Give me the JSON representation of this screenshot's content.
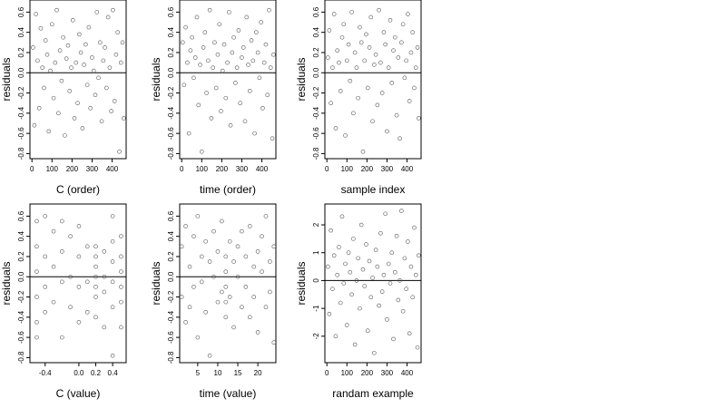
{
  "chart_data": [
    {
      "type": "scatter",
      "xlabel": "C (order)",
      "ylabel": "residuals",
      "xlim": [
        -10,
        470
      ],
      "ylim": [
        -0.85,
        0.72
      ],
      "xticks": [
        0,
        100,
        200,
        300,
        400
      ],
      "yticks": [
        -0.8,
        -0.6,
        -0.4,
        -0.2,
        0.0,
        0.2,
        0.4,
        0.6
      ],
      "xtick_labels": [
        "0",
        "100",
        "200",
        "300",
        "400"
      ],
      "ytick_labels": [
        "-0.8",
        "-0.6",
        "-0.4",
        "-0.2",
        "0.0",
        "0.2",
        "0.4",
        "0.6"
      ],
      "reference_line_y": 0,
      "x": [
        5,
        12,
        20,
        28,
        36,
        44,
        52,
        60,
        68,
        76,
        84,
        92,
        100,
        108,
        116,
        124,
        132,
        140,
        148,
        156,
        164,
        172,
        180,
        188,
        196,
        204,
        212,
        220,
        228,
        236,
        244,
        252,
        260,
        268,
        276,
        284,
        292,
        300,
        308,
        316,
        324,
        332,
        340,
        348,
        356,
        364,
        372,
        380,
        388,
        396,
        404,
        412,
        420,
        428,
        436,
        444,
        452,
        458
      ],
      "y": [
        0.25,
        -0.52,
        0.58,
        0.12,
        -0.35,
        0.44,
        0.05,
        -0.15,
        0.32,
        0.18,
        -0.58,
        0.02,
        0.48,
        -0.25,
        0.1,
        0.62,
        -0.4,
        0.22,
        -0.08,
        0.35,
        -0.62,
        0.14,
        0.27,
        -0.18,
        0.05,
        0.52,
        -0.45,
        0.1,
        -0.3,
        0.38,
        0.2,
        -0.55,
        0.08,
        0.28,
        -0.12,
        0.45,
        -0.35,
        0.15,
        0.02,
        -0.22,
        0.6,
        -0.05,
        0.3,
        -0.48,
        0.12,
        0.25,
        -0.15,
        0.55,
        0.05,
        -0.38,
        0.62,
        -0.28,
        0.18,
        0.4,
        -0.78,
        0.1,
        0.3,
        -0.45
      ]
    },
    {
      "type": "scatter",
      "xlabel": "time (order)",
      "ylabel": "residuals",
      "xlim": [
        -10,
        470
      ],
      "ylim": [
        -0.85,
        0.72
      ],
      "xticks": [
        0,
        100,
        200,
        300,
        400
      ],
      "yticks": [
        -0.8,
        -0.6,
        -0.4,
        -0.2,
        0.0,
        0.2,
        0.4,
        0.6
      ],
      "xtick_labels": [
        "0",
        "100",
        "200",
        "300",
        "400"
      ],
      "ytick_labels": [
        "-0.8",
        "-0.6",
        "-0.4",
        "-0.2",
        "0.0",
        "0.2",
        "0.4",
        "0.6"
      ],
      "reference_line_y": 0,
      "x": [
        5,
        12,
        20,
        28,
        36,
        44,
        52,
        60,
        68,
        76,
        84,
        92,
        100,
        108,
        116,
        124,
        132,
        140,
        148,
        156,
        164,
        172,
        180,
        188,
        196,
        204,
        212,
        220,
        228,
        236,
        244,
        252,
        260,
        268,
        276,
        284,
        292,
        300,
        308,
        316,
        324,
        332,
        340,
        348,
        356,
        364,
        372,
        380,
        388,
        396,
        404,
        412,
        420,
        428,
        436,
        444,
        452,
        458
      ],
      "y": [
        0.3,
        -0.12,
        0.45,
        0.1,
        -0.6,
        0.22,
        0.35,
        -0.05,
        0.15,
        0.55,
        -0.32,
        0.08,
        -0.78,
        0.25,
        0.4,
        -0.2,
        0.12,
        0.62,
        -0.45,
        0.05,
        0.3,
        -0.15,
        0.18,
        0.48,
        -0.38,
        0.02,
        0.28,
        -0.25,
        0.1,
        0.6,
        -0.52,
        0.2,
        0.35,
        -0.1,
        0.05,
        0.42,
        -0.3,
        0.15,
        0.25,
        -0.48,
        0.55,
        0.08,
        -0.18,
        0.32,
        0.12,
        -0.6,
        0.4,
        0.2,
        -0.05,
        0.5,
        -0.35,
        0.1,
        0.28,
        -0.22,
        0.62,
        0.05,
        -0.65,
        0.18
      ]
    },
    {
      "type": "scatter",
      "xlabel": "sample index",
      "ylabel": "residuals",
      "xlim": [
        -10,
        470
      ],
      "ylim": [
        -0.85,
        0.72
      ],
      "xticks": [
        0,
        100,
        200,
        300,
        400
      ],
      "yticks": [
        -0.8,
        -0.6,
        -0.4,
        -0.2,
        0.0,
        0.2,
        0.4,
        0.6
      ],
      "xtick_labels": [
        "0",
        "100",
        "200",
        "300",
        "400"
      ],
      "ytick_labels": [
        "-0.8",
        "-0.6",
        "-0.4",
        "-0.2",
        "0.0",
        "0.2",
        "0.4",
        "0.6"
      ],
      "reference_line_y": 0,
      "x": [
        5,
        12,
        20,
        28,
        36,
        44,
        52,
        60,
        68,
        76,
        84,
        92,
        100,
        108,
        116,
        124,
        132,
        140,
        148,
        156,
        164,
        172,
        180,
        188,
        196,
        204,
        212,
        220,
        228,
        236,
        244,
        252,
        260,
        268,
        276,
        284,
        292,
        300,
        308,
        316,
        324,
        332,
        340,
        348,
        356,
        364,
        372,
        380,
        388,
        396,
        404,
        412,
        420,
        428,
        436,
        444,
        452,
        458
      ],
      "y": [
        0.15,
        0.42,
        -0.3,
        0.05,
        0.58,
        -0.55,
        0.22,
        0.1,
        -0.18,
        0.35,
        0.48,
        -0.62,
        0.12,
        0.28,
        -0.08,
        0.6,
        -0.4,
        0.2,
        0.05,
        -0.25,
        0.45,
        0.3,
        -0.78,
        0.12,
        0.38,
        -0.15,
        0.25,
        0.55,
        -0.48,
        0.08,
        0.18,
        -0.32,
        0.62,
        0.1,
        -0.2,
        0.4,
        0.28,
        -0.58,
        0.05,
        0.52,
        -0.1,
        0.22,
        0.35,
        -0.42,
        0.15,
        -0.65,
        0.3,
        0.48,
        -0.05,
        0.12,
        0.58,
        -0.28,
        0.2,
        0.4,
        -0.15,
        0.05,
        0.25,
        -0.45
      ]
    },
    {
      "type": "scatter",
      "xlabel": "C (value)",
      "ylabel": "residuals",
      "xlim": [
        -0.58,
        0.56
      ],
      "ylim": [
        -0.85,
        0.72
      ],
      "xticks": [
        -0.4,
        0.0,
        0.2,
        0.4
      ],
      "yticks": [
        -0.8,
        -0.6,
        -0.4,
        -0.2,
        0.0,
        0.2,
        0.4,
        0.6
      ],
      "xtick_labels": [
        "-0.4",
        "0.0",
        "0.2",
        "0.4"
      ],
      "ytick_labels": [
        "-0.8",
        "-0.6",
        "-0.4",
        "-0.2",
        "0.0",
        "0.2",
        "0.4",
        "0.6"
      ],
      "reference_line_y": 0,
      "x": [
        -0.5,
        -0.5,
        -0.5,
        -0.5,
        -0.5,
        -0.5,
        -0.4,
        -0.4,
        -0.4,
        -0.4,
        -0.3,
        -0.3,
        -0.3,
        -0.2,
        -0.2,
        -0.2,
        -0.2,
        -0.1,
        -0.1,
        -0.1,
        0.0,
        0.0,
        0.0,
        0.0,
        0.1,
        0.1,
        0.1,
        0.2,
        0.2,
        0.2,
        0.2,
        0.2,
        0.2,
        0.2,
        0.3,
        0.3,
        0.3,
        0.3,
        0.4,
        0.4,
        0.4,
        0.4,
        0.4,
        0.4,
        0.5,
        0.5,
        0.5,
        0.5,
        0.5,
        0.5
      ],
      "y": [
        0.55,
        0.3,
        0.05,
        -0.2,
        -0.45,
        -0.6,
        0.6,
        0.2,
        -0.1,
        -0.35,
        0.45,
        0.1,
        -0.25,
        0.55,
        0.25,
        -0.05,
        -0.6,
        0.4,
        0.0,
        -0.3,
        0.5,
        0.2,
        -0.1,
        -0.45,
        0.3,
        -0.05,
        -0.35,
        0.3,
        0.2,
        0.1,
        0.0,
        -0.1,
        -0.2,
        -0.4,
        0.25,
        0.0,
        -0.15,
        -0.5,
        0.6,
        0.35,
        0.15,
        -0.05,
        -0.3,
        -0.78,
        0.4,
        0.2,
        0.05,
        -0.1,
        -0.25,
        -0.5
      ]
    },
    {
      "type": "scatter",
      "xlabel": "time (value)",
      "ylabel": "residuals",
      "xlim": [
        0.5,
        24.5
      ],
      "ylim": [
        -0.85,
        0.72
      ],
      "xticks": [
        5,
        10,
        15,
        20
      ],
      "yticks": [
        -0.8,
        -0.6,
        -0.4,
        -0.2,
        0.0,
        0.2,
        0.4,
        0.6
      ],
      "xtick_labels": [
        "5",
        "10",
        "15",
        "20"
      ],
      "ytick_labels": [
        "-0.8",
        "-0.6",
        "-0.4",
        "-0.2",
        "0.0",
        "0.2",
        "0.4",
        "0.6"
      ],
      "reference_line_y": 0,
      "x": [
        1,
        1,
        2,
        2,
        3,
        3,
        4,
        4,
        5,
        5,
        6,
        6,
        7,
        7,
        8,
        8,
        9,
        9,
        10,
        10,
        11,
        11,
        12,
        12,
        12,
        12,
        12,
        13,
        13,
        14,
        14,
        15,
        15,
        16,
        16,
        17,
        17,
        18,
        18,
        19,
        19,
        20,
        20,
        21,
        21,
        22,
        22,
        23,
        23,
        24,
        24
      ],
      "y": [
        0.3,
        -0.2,
        0.5,
        -0.45,
        0.1,
        -0.3,
        0.4,
        -0.1,
        0.6,
        -0.6,
        0.2,
        -0.05,
        0.35,
        -0.35,
        0.15,
        -0.78,
        0.45,
        0.0,
        0.25,
        -0.25,
        0.55,
        -0.15,
        0.2,
        0.05,
        -0.1,
        -0.25,
        -0.4,
        0.35,
        -0.2,
        0.15,
        -0.5,
        0.3,
        0.0,
        0.45,
        -0.3,
        0.2,
        -0.1,
        0.5,
        -0.4,
        0.1,
        -0.2,
        0.25,
        -0.55,
        0.4,
        0.05,
        0.6,
        -0.3,
        0.15,
        -0.15,
        0.3,
        -0.65
      ]
    },
    {
      "type": "scatter",
      "xlabel": "randam example",
      "ylabel": "residuals",
      "xlim": [
        -10,
        470
      ],
      "ylim": [
        -2.95,
        2.75
      ],
      "xticks": [
        0,
        100,
        200,
        300,
        400
      ],
      "yticks": [
        -2,
        -1,
        0,
        1,
        2
      ],
      "xtick_labels": [
        "0",
        "100",
        "200",
        "300",
        "400"
      ],
      "ytick_labels": [
        "-2",
        "-1",
        "0",
        "1",
        "2"
      ],
      "reference_line_y": 0,
      "x": [
        5,
        12,
        20,
        28,
        36,
        44,
        52,
        60,
        68,
        76,
        84,
        92,
        100,
        108,
        116,
        124,
        132,
        140,
        148,
        156,
        164,
        172,
        180,
        188,
        196,
        204,
        212,
        220,
        228,
        236,
        244,
        252,
        260,
        268,
        276,
        284,
        292,
        300,
        308,
        316,
        324,
        332,
        340,
        348,
        356,
        364,
        372,
        380,
        388,
        396,
        404,
        412,
        420,
        428,
        436,
        444,
        452,
        458
      ],
      "y": [
        0.5,
        -1.2,
        1.8,
        -0.3,
        0.9,
        -2.0,
        0.2,
        1.2,
        -0.8,
        2.3,
        -0.1,
        0.6,
        -1.6,
        1.0,
        0.3,
        -0.5,
        1.5,
        -2.3,
        0.0,
        0.8,
        -1.0,
        2.0,
        0.4,
        -0.2,
        1.3,
        -1.8,
        0.7,
        -0.6,
        0.1,
        -2.6,
        1.1,
        0.5,
        -0.9,
        1.7,
        -0.4,
        0.2,
        2.4,
        -1.4,
        0.6,
        -0.1,
        1.0,
        -2.1,
        0.3,
        1.6,
        -0.7,
        0.0,
        2.5,
        -1.1,
        0.8,
        -0.3,
        1.4,
        -1.9,
        0.5,
        -0.6,
        1.9,
        0.2,
        -2.4,
        0.9
      ]
    }
  ]
}
